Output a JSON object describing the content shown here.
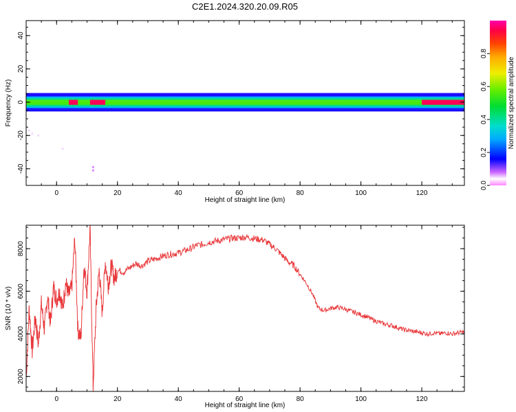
{
  "figure": {
    "title": "C2E1.2024.320.20.09.R05"
  },
  "chart_data": [
    {
      "type": "heatmap",
      "xlabel": "Height of straight line (km)",
      "ylabel": "Frequency (Hz)",
      "xlim": [
        -10,
        134
      ],
      "ylim": [
        -50,
        49
      ],
      "xticks": [
        0,
        20,
        40,
        60,
        80,
        100,
        120
      ],
      "yticks": [
        -40,
        -20,
        0,
        20,
        40
      ],
      "colorbar": {
        "label": "Normalized spectral amplitude",
        "range": [
          0.0,
          1.0
        ],
        "ticks": [
          0.0,
          0.2,
          0.4,
          0.6,
          0.8
        ]
      },
      "band": {
        "center_frequency": 0,
        "half_width_hz": 5,
        "peak_amplitude_ranges_km": [
          [
            4,
            6
          ],
          [
            11,
            12
          ],
          [
            13,
            15
          ],
          [
            120,
            134
          ]
        ],
        "peak_amplitude": 0.95,
        "core_amplitude": 0.55,
        "edge_amplitude": 0.15
      },
      "scatter_points": [
        {
          "x": -9,
          "y": -17,
          "amplitude": 0.05
        },
        {
          "x": -8,
          "y": -19,
          "amplitude": 0.05
        },
        {
          "x": -6,
          "y": -20,
          "amplitude": 0.05
        },
        {
          "x": 2,
          "y": -28,
          "amplitude": 0.05
        },
        {
          "x": 12,
          "y": -39,
          "amplitude": 0.07
        },
        {
          "x": 12,
          "y": -41,
          "amplitude": 0.07
        }
      ]
    },
    {
      "type": "line",
      "xlabel": "Height of straight line (km)",
      "ylabel": "SNR (10 * v/v)",
      "xlim": [
        -10,
        134
      ],
      "ylim": [
        1300,
        9100
      ],
      "xticks": [
        0,
        20,
        40,
        60,
        80,
        100,
        120
      ],
      "yticks": [
        2000,
        4000,
        6000,
        8000
      ],
      "series": [
        {
          "color": "#e8383b",
          "x": [
            -10,
            -9,
            -8,
            -7,
            -6,
            -5,
            -4,
            -3,
            -2,
            -1,
            0,
            1,
            2,
            3,
            4,
            5,
            6,
            7,
            8,
            9,
            10,
            11,
            12,
            13,
            14,
            15,
            16,
            17,
            18,
            19,
            20,
            22,
            24,
            26,
            28,
            30,
            32,
            34,
            36,
            38,
            40,
            42,
            44,
            46,
            48,
            50,
            52,
            54,
            56,
            58,
            60,
            62,
            64,
            66,
            68,
            70,
            72,
            74,
            76,
            78,
            80,
            82,
            84,
            86,
            88,
            90,
            92,
            94,
            96,
            98,
            100,
            102,
            104,
            106,
            108,
            110,
            112,
            114,
            116,
            118,
            120,
            122,
            124,
            126,
            128,
            130,
            132,
            134
          ],
          "values": [
            1900,
            5200,
            3200,
            4800,
            3500,
            5400,
            4200,
            5800,
            4500,
            6200,
            5600,
            6000,
            5200,
            6400,
            5800,
            6200,
            8500,
            4200,
            3800,
            7200,
            6000,
            8900,
            1500,
            5200,
            7000,
            5000,
            7400,
            6300,
            7200,
            6600,
            7000,
            6900,
            7100,
            7300,
            7200,
            7400,
            7500,
            7600,
            7700,
            7750,
            7800,
            7900,
            8000,
            8150,
            8200,
            8300,
            8350,
            8400,
            8450,
            8500,
            8500,
            8550,
            8500,
            8450,
            8400,
            8200,
            8000,
            7700,
            7400,
            7200,
            6800,
            6400,
            5900,
            5200,
            5100,
            5200,
            5250,
            5200,
            5100,
            5000,
            4900,
            4800,
            4650,
            4550,
            4450,
            4400,
            4300,
            4200,
            4150,
            4100,
            4050,
            4000,
            4050,
            4000,
            4050,
            4000,
            4050,
            4100
          ]
        }
      ]
    }
  ]
}
